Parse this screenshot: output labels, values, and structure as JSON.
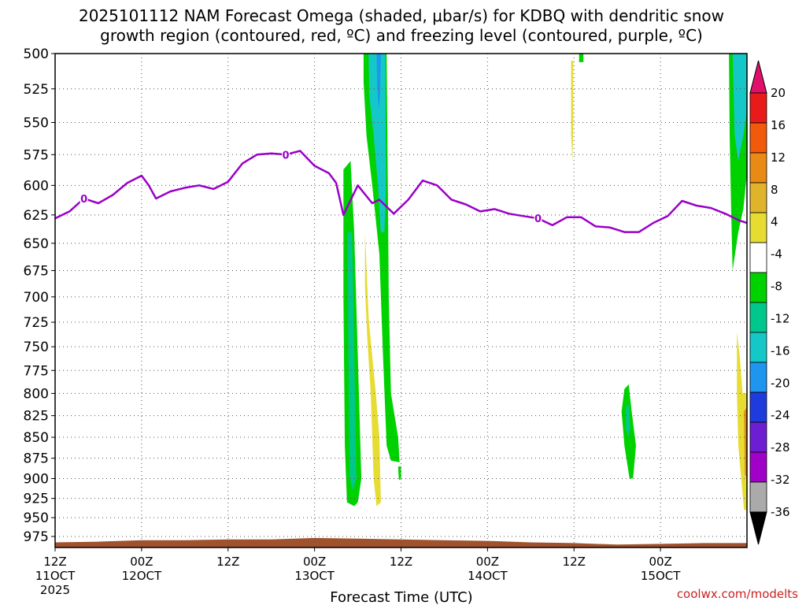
{
  "title": {
    "line1": "2025101112 NAM Forecast Omega (shaded, μbar/s) for KDBQ with dendritic snow",
    "line2": "growth region (contoured, red, ºC) and freezing level (contoured, purple, ºC)"
  },
  "credit": "coolwx.com/modelts",
  "colors": {
    "freezing_level": "#9a00c8",
    "terrain": "#a0522d",
    "credit": "#cc2222",
    "frame": "#000000"
  },
  "chart_data": {
    "type": "heatmap",
    "xlabel": "Forecast Time (UTC)",
    "ylabel": "",
    "x_units": "forecast hour",
    "xlim": [
      0,
      96
    ],
    "ylim": [
      500,
      990
    ],
    "y_scale": "log-pressure (inverted)",
    "y_ticks": [
      500,
      525,
      550,
      575,
      600,
      625,
      650,
      675,
      700,
      725,
      750,
      775,
      800,
      825,
      850,
      875,
      900,
      925,
      950,
      975
    ],
    "x_ticks": [
      {
        "hour": 0,
        "label1": "12Z",
        "label2": "11OCT",
        "label3": "2025"
      },
      {
        "hour": 12,
        "label1": "00Z",
        "label2": "12OCT",
        "label3": ""
      },
      {
        "hour": 24,
        "label1": "12Z",
        "label2": "",
        "label3": ""
      },
      {
        "hour": 36,
        "label1": "00Z",
        "label2": "13OCT",
        "label3": ""
      },
      {
        "hour": 48,
        "label1": "12Z",
        "label2": "",
        "label3": ""
      },
      {
        "hour": 60,
        "label1": "00Z",
        "label2": "14OCT",
        "label3": ""
      },
      {
        "hour": 72,
        "label1": "12Z",
        "label2": "",
        "label3": ""
      },
      {
        "hour": 84,
        "label1": "00Z",
        "label2": "15OCT",
        "label3": ""
      }
    ],
    "grid": true,
    "colorbar": {
      "ticks": [
        20,
        16,
        12,
        8,
        4,
        -4,
        -8,
        -12,
        -16,
        -20,
        -24,
        -28,
        -32,
        -36
      ],
      "bins": [
        {
          "color": "#e0106a",
          "lo": 20,
          "hi": null
        },
        {
          "color": "#e81a1a",
          "lo": 16,
          "hi": 20
        },
        {
          "color": "#f05a0a",
          "lo": 12,
          "hi": 16
        },
        {
          "color": "#e88a14",
          "lo": 8,
          "hi": 12
        },
        {
          "color": "#e0b42a",
          "lo": 4,
          "hi": 8
        },
        {
          "color": "#e6dc32",
          "lo": 4,
          "hi": 8,
          "note": "light"
        },
        {
          "color": "#ffffff",
          "lo": -4,
          "hi": 4
        },
        {
          "color": "#00d200",
          "lo": -8,
          "hi": -4
        },
        {
          "color": "#00c88c",
          "lo": -12,
          "hi": -8
        },
        {
          "color": "#14c8c8",
          "lo": -16,
          "hi": -12
        },
        {
          "color": "#1e96f0",
          "lo": -20,
          "hi": -16
        },
        {
          "color": "#1e3cdc",
          "lo": -24,
          "hi": -20
        },
        {
          "color": "#6e1ed2",
          "lo": -28,
          "hi": -24
        },
        {
          "color": "#a000c8",
          "lo": -32,
          "hi": -28
        },
        {
          "color": "#aaaaaa",
          "lo": -36,
          "hi": -32
        },
        {
          "color": "#000000",
          "lo": null,
          "hi": -36
        }
      ]
    },
    "freezing_level": {
      "label": "0",
      "hours": [
        0,
        2,
        4,
        6,
        8,
        10,
        12,
        13,
        14,
        16,
        18,
        20,
        22,
        24,
        26,
        28,
        30,
        32,
        34,
        35,
        36,
        38,
        39,
        40,
        42,
        44,
        45,
        47,
        49,
        51,
        53,
        55,
        57,
        59,
        61,
        63,
        65,
        67,
        69,
        71,
        73,
        75,
        77,
        79,
        81,
        83,
        85,
        87,
        89,
        91,
        93,
        95,
        96
      ],
      "pressures": [
        628,
        622,
        611,
        615,
        608,
        598,
        592,
        600,
        611,
        605,
        602,
        600,
        603,
        597,
        582,
        575,
        574,
        575,
        572,
        578,
        584,
        590,
        598,
        625,
        600,
        615,
        612,
        624,
        612,
        596,
        600,
        612,
        616,
        622,
        620,
        624,
        626,
        628,
        634,
        627,
        627,
        635,
        636,
        640,
        640,
        632,
        626,
        613,
        617,
        619,
        624,
        630,
        632
      ],
      "label_hours": [
        4,
        32,
        67
      ]
    },
    "regions": [
      {
        "name": "green-column-1",
        "value": -6,
        "color": "#00d200",
        "polygon": [
          [
            40.0,
            587
          ],
          [
            41.0,
            580
          ],
          [
            41.5,
            640
          ],
          [
            42.0,
            760
          ],
          [
            42.5,
            900
          ],
          [
            42.0,
            930
          ],
          [
            41.5,
            935
          ],
          [
            40.5,
            930
          ],
          [
            40.2,
            860
          ],
          [
            40.0,
            700
          ]
        ]
      },
      {
        "name": "teal-core-1",
        "value": -10,
        "color": "#00c88c",
        "polygon": [
          [
            40.6,
            640
          ],
          [
            41.2,
            640
          ],
          [
            41.6,
            800
          ],
          [
            41.8,
            900
          ],
          [
            41.3,
            915
          ],
          [
            40.9,
            900
          ],
          [
            40.7,
            760
          ]
        ]
      },
      {
        "name": "yellow-column-1",
        "value": 5,
        "color": "#e6dc32",
        "polygon": [
          [
            43.0,
            640
          ],
          [
            43.5,
            720
          ],
          [
            44.0,
            760
          ],
          [
            44.5,
            800
          ],
          [
            45.0,
            850
          ],
          [
            45.2,
            930
          ],
          [
            44.6,
            935
          ],
          [
            44.2,
            900
          ],
          [
            43.8,
            800
          ],
          [
            43.3,
            740
          ],
          [
            43.0,
            690
          ]
        ]
      },
      {
        "name": "green-column-2",
        "value": -6,
        "color": "#00d200",
        "polygon": [
          [
            42.8,
            500
          ],
          [
            46.0,
            500
          ],
          [
            46.2,
            620
          ],
          [
            46.3,
            700
          ],
          [
            46.6,
            800
          ],
          [
            47.6,
            850
          ],
          [
            47.8,
            880
          ],
          [
            46.6,
            878
          ],
          [
            46.0,
            860
          ],
          [
            45.5,
            760
          ],
          [
            45.0,
            660
          ],
          [
            44.0,
            600
          ],
          [
            43.2,
            560
          ],
          [
            42.8,
            520
          ]
        ]
      },
      {
        "name": "green-blob-2b",
        "value": -6,
        "color": "#00d200",
        "polygon": [
          [
            47.6,
            885
          ],
          [
            48.0,
            885
          ],
          [
            48.0,
            900
          ],
          [
            47.7,
            902
          ]
        ]
      },
      {
        "name": "teal-column-2",
        "value": -12,
        "color": "#14c8c8",
        "polygon": [
          [
            43.5,
            500
          ],
          [
            45.8,
            500
          ],
          [
            45.9,
            600
          ],
          [
            45.7,
            640
          ],
          [
            45.2,
            640
          ],
          [
            44.8,
            600
          ],
          [
            44.2,
            560
          ],
          [
            43.6,
            530
          ]
        ]
      },
      {
        "name": "blue-core-2",
        "value": -18,
        "color": "#1e96f0",
        "polygon": [
          [
            44.6,
            500
          ],
          [
            45.2,
            500
          ],
          [
            45.1,
            530
          ],
          [
            44.9,
            540
          ],
          [
            44.7,
            525
          ]
        ]
      },
      {
        "name": "yellow-sliver-12z",
        "value": 5,
        "color": "#e6dc32",
        "polygon": [
          [
            71.6,
            505
          ],
          [
            71.9,
            505
          ],
          [
            71.9,
            550
          ],
          [
            71.8,
            580
          ],
          [
            71.6,
            560
          ]
        ]
      },
      {
        "name": "green-dot-12z",
        "value": -6,
        "color": "#00d200",
        "polygon": [
          [
            72.7,
            500
          ],
          [
            73.3,
            500
          ],
          [
            73.3,
            506
          ],
          [
            72.7,
            506
          ]
        ]
      },
      {
        "name": "green-blob-18z",
        "value": -6,
        "color": "#00d200",
        "polygon": [
          [
            79.0,
            795
          ],
          [
            79.6,
            790
          ],
          [
            80.0,
            820
          ],
          [
            80.6,
            860
          ],
          [
            80.2,
            900
          ],
          [
            79.7,
            900
          ],
          [
            79.0,
            860
          ],
          [
            78.6,
            820
          ]
        ]
      },
      {
        "name": "teal-blob-18z",
        "value": -10,
        "color": "#00c88c",
        "polygon": [
          [
            79.2,
            815
          ],
          [
            79.6,
            812
          ],
          [
            79.8,
            840
          ],
          [
            79.5,
            850
          ],
          [
            79.2,
            840
          ]
        ]
      },
      {
        "name": "yellow-blob-end",
        "value": 5,
        "color": "#e6dc32",
        "polygon": [
          [
            94.6,
            735
          ],
          [
            95.0,
            760
          ],
          [
            95.4,
            800
          ],
          [
            96.0,
            800
          ],
          [
            96.0,
            940
          ],
          [
            95.6,
            940
          ],
          [
            95.2,
            900
          ],
          [
            94.8,
            860
          ],
          [
            94.6,
            800
          ]
        ]
      },
      {
        "name": "orange-blob-end",
        "value": 10,
        "color": "#e88a14",
        "polygon": [
          [
            95.6,
            820
          ],
          [
            96.0,
            815
          ],
          [
            96.0,
            900
          ],
          [
            95.7,
            895
          ]
        ]
      },
      {
        "name": "green-column-end",
        "value": -6,
        "color": "#00d200",
        "polygon": [
          [
            93.5,
            500
          ],
          [
            96.0,
            500
          ],
          [
            96.0,
            590
          ],
          [
            95.5,
            620
          ],
          [
            94.8,
            640
          ],
          [
            94.0,
            675
          ],
          [
            93.8,
            620
          ],
          [
            93.6,
            560
          ]
        ]
      },
      {
        "name": "teal-column-end",
        "value": -12,
        "color": "#14c8c8",
        "polygon": [
          [
            94.0,
            500
          ],
          [
            96.0,
            500
          ],
          [
            96.0,
            540
          ],
          [
            95.5,
            560
          ],
          [
            94.8,
            580
          ],
          [
            94.3,
            560
          ]
        ]
      }
    ],
    "surface": {
      "color": "#a0522d",
      "hours": [
        0,
        6,
        12,
        18,
        24,
        30,
        36,
        42,
        48,
        54,
        60,
        66,
        72,
        78,
        84,
        90,
        96
      ],
      "pressures": [
        983,
        982,
        980,
        980,
        979,
        979,
        977,
        978,
        979,
        980,
        981,
        983,
        984,
        986,
        985,
        984,
        984
      ]
    }
  }
}
